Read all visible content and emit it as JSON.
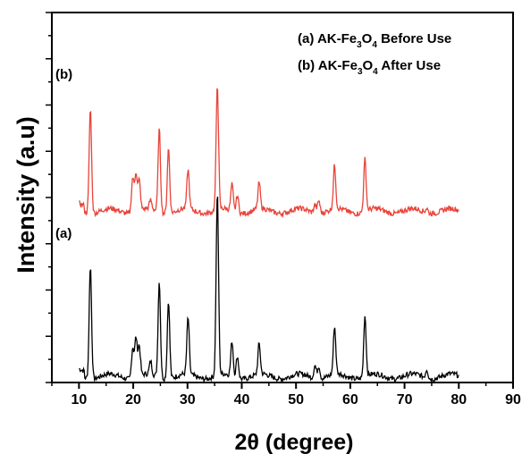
{
  "chart_data": {
    "type": "line",
    "xlabel": "2θ (degree)",
    "ylabel": "Intensity (a.u)",
    "xlim": [
      5,
      90
    ],
    "xticks": [
      10,
      20,
      30,
      40,
      50,
      60,
      70,
      80,
      90
    ],
    "xtick_labels": [
      "10",
      "20",
      "30",
      "40",
      "50",
      "60",
      "70",
      "80",
      "90"
    ],
    "y_tick_labels_shown": false,
    "legend": {
      "placement": "top-right",
      "entries": [
        {
          "prefix": "(a) AK-Fe",
          "sub1": "3",
          "mid": "O",
          "sub2": "4",
          "suffix": " Before Use"
        },
        {
          "prefix": "(b) AK-Fe",
          "sub1": "3",
          "mid": "O",
          "sub2": "4",
          "suffix": " After Use"
        }
      ]
    },
    "series": [
      {
        "name": "(a) AK-Fe3O4 Before Use",
        "tag": "(a)",
        "color": "#000000",
        "baseline": 0.1,
        "peaks": [
          [
            12.1,
            2.6
          ],
          [
            19.9,
            0.7
          ],
          [
            20.5,
            0.9
          ],
          [
            21.1,
            0.7
          ],
          [
            23.2,
            0.3
          ],
          [
            24.8,
            2.2
          ],
          [
            26.5,
            1.8
          ],
          [
            30.1,
            1.3
          ],
          [
            35.5,
            4.2
          ],
          [
            38.2,
            0.8
          ],
          [
            39.2,
            0.5
          ],
          [
            43.2,
            0.7
          ],
          [
            53.5,
            0.3
          ],
          [
            54.2,
            0.3
          ],
          [
            57.1,
            1.1
          ],
          [
            62.7,
            1.4
          ],
          [
            74.1,
            0.2
          ]
        ]
      },
      {
        "name": "(b) AK-Fe3O4 After Use",
        "tag": "(b)",
        "color": "#e8443a",
        "baseline": 3.9,
        "peaks": [
          [
            12.1,
            2.4
          ],
          [
            19.9,
            0.8
          ],
          [
            20.5,
            0.9
          ],
          [
            21.1,
            0.7
          ],
          [
            23.2,
            0.2
          ],
          [
            24.8,
            1.9
          ],
          [
            26.5,
            1.5
          ],
          [
            30.1,
            0.9
          ],
          [
            35.5,
            2.9
          ],
          [
            38.2,
            0.6
          ],
          [
            39.2,
            0.4
          ],
          [
            43.2,
            0.6
          ],
          [
            53.5,
            0.2
          ],
          [
            54.2,
            0.3
          ],
          [
            57.1,
            1.0
          ],
          [
            62.7,
            1.2
          ],
          [
            74.1,
            0.1
          ]
        ]
      }
    ]
  }
}
